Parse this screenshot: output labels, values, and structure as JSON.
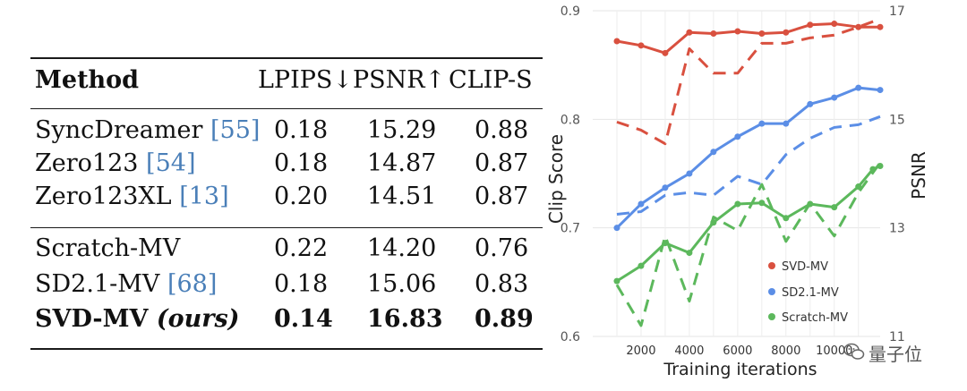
{
  "table": {
    "headers": {
      "method": "Method",
      "lpips": "LPIPS↓",
      "psnr": "PSNR↑",
      "clip": "CLIP-S"
    },
    "rows": [
      {
        "method": "SyncDreamer",
        "cite_open": "[",
        "cite": "55",
        "cite_close": "]",
        "lpips": "0.18",
        "psnr": "15.29",
        "clip": "0.88"
      },
      {
        "method": "Zero123",
        "cite_open": "[",
        "cite": "54",
        "cite_close": "]",
        "lpips": "0.18",
        "psnr": "14.87",
        "clip": "0.87"
      },
      {
        "method": "Zero123XL",
        "cite_open": "[",
        "cite": "13",
        "cite_close": "]",
        "lpips": "0.20",
        "psnr": "14.51",
        "clip": "0.87"
      },
      {
        "method": "Scratch-MV",
        "lpips": "0.22",
        "psnr": "14.20",
        "clip": "0.76"
      },
      {
        "method": "SD2.1-MV",
        "cite_open": "[",
        "cite": "68",
        "cite_close": "]",
        "lpips": "0.18",
        "psnr": "15.06",
        "clip": "0.83"
      },
      {
        "method": "SVD-MV",
        "ours": "(ours)",
        "lpips": "0.14",
        "psnr": "16.83",
        "clip": "0.89",
        "bold": true
      }
    ]
  },
  "chart_data": {
    "type": "line",
    "xlabel": "Training iterations",
    "ylabel_left": "Clip Score",
    "ylabel_right": "PSNR",
    "xticks": [
      "2000",
      "4000",
      "6000",
      "8000",
      "10000"
    ],
    "ylim_left": [
      0.6,
      0.9
    ],
    "yticks_left": [
      "0.6",
      "0.7",
      "0.8",
      "0.9"
    ],
    "ylim_right": [
      11,
      17
    ],
    "yticks_right": [
      "11",
      "13",
      "15",
      "17"
    ],
    "x": [
      1000,
      2000,
      3000,
      4000,
      5000,
      6000,
      7000,
      8000,
      9000,
      10000,
      11000
    ],
    "grid": true,
    "legend_position": "bottom-right",
    "series": [
      {
        "name": "SVD-MV",
        "color": "#d9503f",
        "clip": [
          0.872,
          0.868,
          0.861,
          0.88,
          0.879,
          0.881,
          0.879,
          0.88,
          0.887,
          0.888,
          0.885,
          0.885
        ],
        "clip_x": [
          1000,
          2000,
          3000,
          4000,
          5000,
          6000,
          7000,
          8000,
          9000,
          10000,
          11000,
          11900
        ],
        "psnr": [
          14.95,
          14.8,
          14.55,
          16.3,
          15.85,
          15.85,
          16.4,
          16.4,
          16.5,
          16.55,
          16.7,
          16.85
        ],
        "psnr_x": [
          1000,
          2000,
          3000,
          4000,
          5000,
          6000,
          7000,
          8000,
          9000,
          10000,
          11000,
          11900
        ]
      },
      {
        "name": "SD2.1-MV",
        "color": "#5b8ee6",
        "clip": [
          0.7,
          0.722,
          0.737,
          0.75,
          0.77,
          0.784,
          0.796,
          0.796,
          0.814,
          0.82,
          0.829,
          0.827
        ],
        "clip_x": [
          1000,
          2000,
          3000,
          4000,
          5000,
          6000,
          7000,
          8000,
          9000,
          10000,
          11000,
          11900
        ],
        "psnr": [
          13.25,
          13.3,
          13.6,
          13.65,
          13.6,
          13.95,
          13.8,
          14.35,
          14.65,
          14.85,
          14.9,
          15.05
        ],
        "psnr_x": [
          1000,
          2000,
          3000,
          4000,
          5000,
          6000,
          7000,
          8000,
          9000,
          10000,
          11000,
          11900
        ]
      },
      {
        "name": "Scratch-MV",
        "color": "#5cb85c",
        "clip": [
          0.651,
          0.665,
          0.686,
          0.677,
          0.705,
          0.722,
          0.723,
          0.709,
          0.722,
          0.719,
          0.738,
          0.754,
          0.757
        ],
        "clip_x": [
          1000,
          2000,
          3000,
          4000,
          5000,
          6000,
          7000,
          8000,
          9000,
          10000,
          11000,
          11600,
          11900
        ],
        "psnr": [
          11.95,
          11.2,
          12.85,
          11.65,
          13.2,
          12.95,
          13.8,
          12.75,
          13.45,
          12.85,
          13.65,
          14.2
        ],
        "psnr_x": [
          1000,
          2000,
          3000,
          4000,
          5000,
          6000,
          7000,
          8000,
          9000,
          10000,
          11000,
          11900
        ]
      }
    ]
  },
  "watermark": {
    "text": "量子位"
  }
}
